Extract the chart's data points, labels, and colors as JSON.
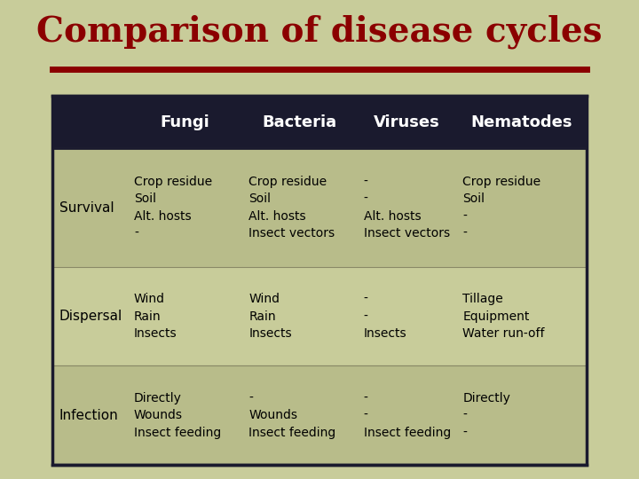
{
  "title": "Comparison of disease cycles",
  "title_color": "#8B0000",
  "title_fontsize": 28,
  "background_color": "#c8cc9a",
  "header_bg": "#1a1a2e",
  "header_text_color": "#ffffff",
  "header_labels": [
    "",
    "Fungi",
    "Bacteria",
    "Viruses",
    "Nematodes"
  ],
  "row_label_color": "#000000",
  "cell_text_color": "#000000",
  "divider_color": "#8B0000",
  "table_border_color": "#1a1a2e",
  "row_bg_odd": "#b8bc8a",
  "row_bg_even": "#c8cc9a",
  "rows": [
    {
      "label": "Survival",
      "fungi": "Crop residue\nSoil\nAlt. hosts\n-",
      "bacteria": "Crop residue\nSoil\nAlt. hosts\nInsect vectors",
      "viruses": "-\n-\nAlt. hosts\nInsect vectors",
      "nematodes": "Crop residue\nSoil\n-\n-"
    },
    {
      "label": "Dispersal",
      "fungi": "Wind\nRain\nInsects",
      "bacteria": "Wind\nRain\nInsects",
      "viruses": "-\n-\nInsects",
      "nematodes": "Tillage\nEquipment\nWater run-off"
    },
    {
      "label": "Infection",
      "fungi": "Directly\nWounds\nInsect feeding",
      "bacteria": "-\nWounds\nInsect feeding",
      "viruses": "-\n-\nInsect feeding",
      "nematodes": "Directly\n-\n-"
    }
  ]
}
